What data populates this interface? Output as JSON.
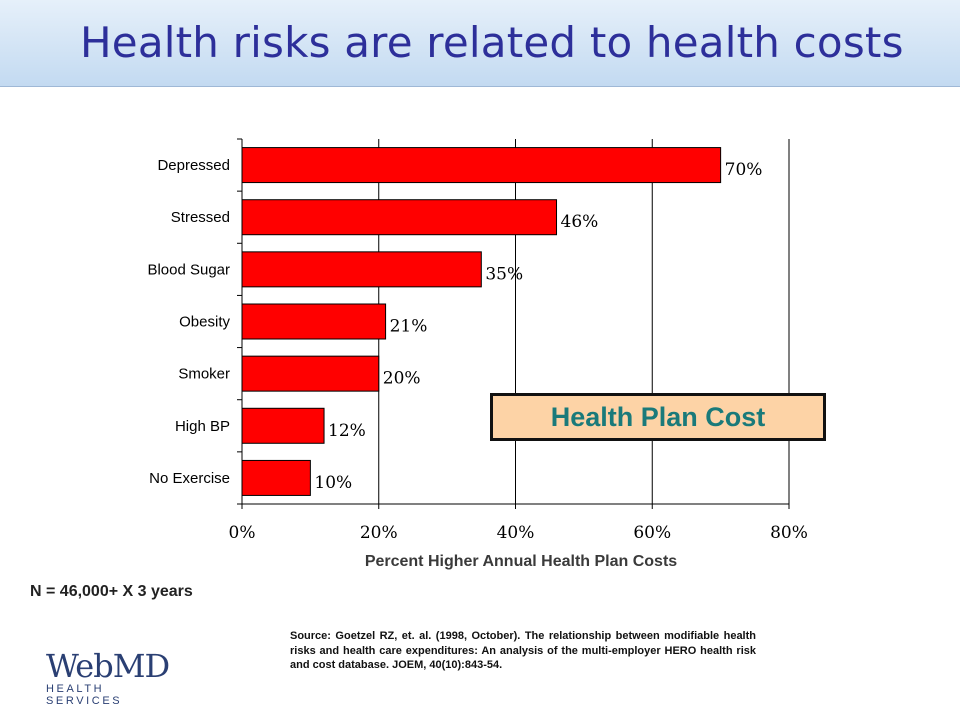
{
  "slide": {
    "title": "Health risks are related to health costs",
    "sample_size": "N = 46,000+ X 3 years",
    "source": "Source: Goetzel RZ, et. al. (1998, October). The relationship between modifiable health risks and health care expenditures: An analysis of the multi-employer HERO health risk and cost database.  JOEM, 40(10):843-54.",
    "logo": {
      "word": "WebMD",
      "sub": "HEALTH SERVICES",
      "color": "#2a3f73"
    }
  },
  "chart_data": {
    "type": "bar",
    "orientation": "horizontal",
    "categories": [
      "Depressed",
      "Stressed",
      "Blood Sugar",
      "Obesity",
      "Smoker",
      "High BP",
      "No Exercise"
    ],
    "values": [
      70,
      46,
      35,
      21,
      20,
      12,
      10
    ],
    "data_labels": [
      "70%",
      "46%",
      "35%",
      "21%",
      "20%",
      "12%",
      "10%"
    ],
    "xlabel": "Percent Higher Annual Health Plan Costs",
    "ylabel": "",
    "xlim": [
      0,
      80
    ],
    "x_ticks": [
      0,
      20,
      40,
      60,
      80
    ],
    "x_tick_labels": [
      "0%",
      "20%",
      "40%",
      "60%",
      "80%"
    ],
    "grid": "vertical",
    "legend": {
      "label": "Health Plan Cost",
      "placement": "lower-right",
      "background": "#fdd3a6",
      "text_color": "#1a7a7a"
    },
    "bar_color": "#ff0000"
  }
}
